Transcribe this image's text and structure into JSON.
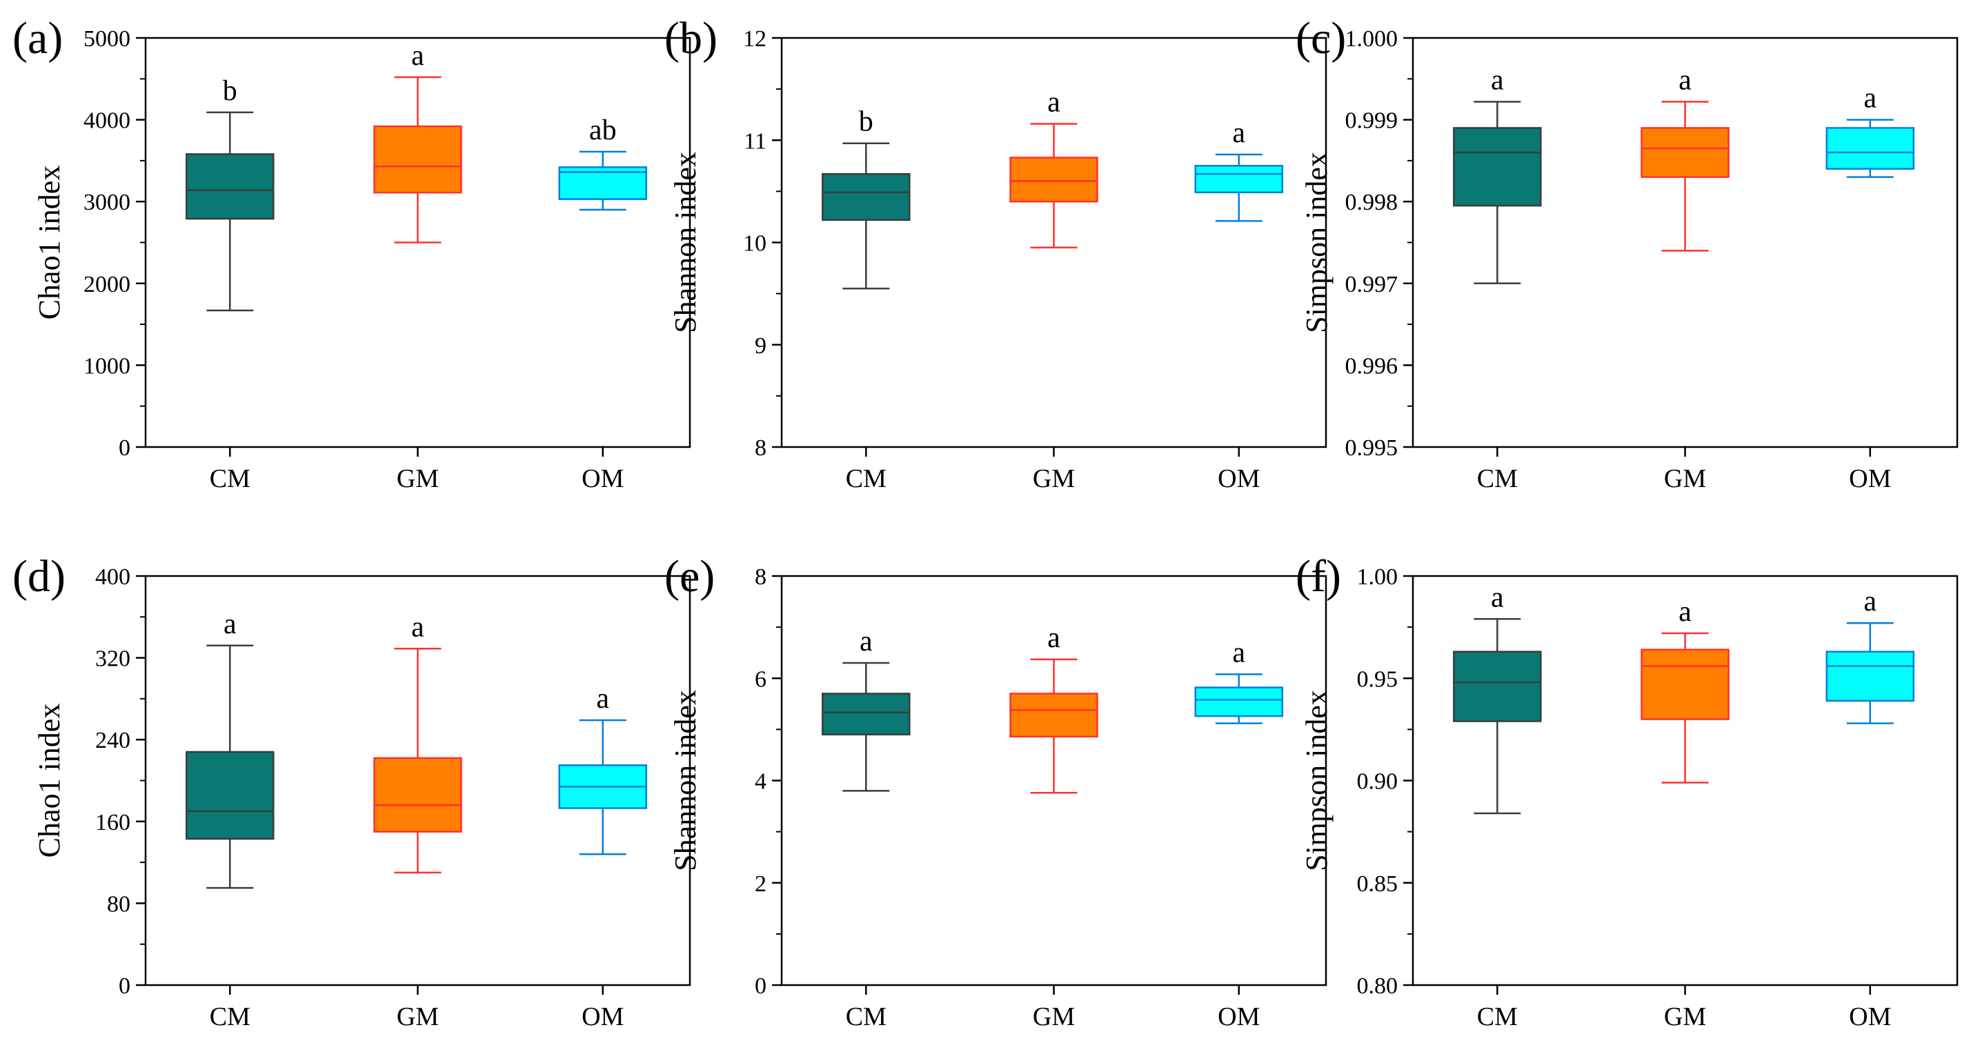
{
  "colors": {
    "CM": {
      "fill": "#0a7873",
      "stroke": "#3c3c3c"
    },
    "GM": {
      "fill": "#ff8000",
      "stroke": "#ff3030"
    },
    "OM": {
      "fill": "#00ffff",
      "stroke": "#0080e0"
    },
    "axis": "#000000"
  },
  "chart_data": [
    {
      "panel": "(a)",
      "type": "box",
      "ylabel": "Chao1 index",
      "ylim": [
        0,
        5000
      ],
      "yticks": [
        "0",
        "1000",
        "2000",
        "3000",
        "4000",
        "5000"
      ],
      "categories": [
        "CM",
        "GM",
        "OM"
      ],
      "boxes": [
        {
          "name": "CM",
          "min": 1670,
          "q1": 2790,
          "median": 3140,
          "q3": 3580,
          "max": 4090,
          "letter": "b"
        },
        {
          "name": "GM",
          "min": 2500,
          "q1": 3110,
          "median": 3430,
          "q3": 3920,
          "max": 4520,
          "letter": "a"
        },
        {
          "name": "OM",
          "min": 2900,
          "q1": 3030,
          "median": 3360,
          "q3": 3420,
          "max": 3610,
          "letter": "ab"
        }
      ]
    },
    {
      "panel": "(b)",
      "type": "box",
      "ylabel": "Shannon index",
      "ylim": [
        8,
        12
      ],
      "yticks": [
        "8",
        "9",
        "10",
        "11",
        "12"
      ],
      "categories": [
        "CM",
        "GM",
        "OM"
      ],
      "boxes": [
        {
          "name": "CM",
          "min": 9.55,
          "q1": 10.22,
          "median": 10.49,
          "q3": 10.67,
          "max": 10.97,
          "letter": "b"
        },
        {
          "name": "GM",
          "min": 9.95,
          "q1": 10.4,
          "median": 10.6,
          "q3": 10.83,
          "max": 11.16,
          "letter": "a"
        },
        {
          "name": "OM",
          "min": 10.21,
          "q1": 10.49,
          "median": 10.67,
          "q3": 10.75,
          "max": 10.86,
          "letter": "a"
        }
      ]
    },
    {
      "panel": "(c)",
      "type": "box",
      "ylabel": "Simpson index",
      "ylim": [
        0.995,
        1.0
      ],
      "yticks": [
        "0.995",
        "0.996",
        "0.997",
        "0.998",
        "0.999",
        "1.000"
      ],
      "categories": [
        "CM",
        "GM",
        "OM"
      ],
      "boxes": [
        {
          "name": "CM",
          "min": 0.997,
          "q1": 0.99795,
          "median": 0.9986,
          "q3": 0.9989,
          "max": 0.99922,
          "letter": "a"
        },
        {
          "name": "GM",
          "min": 0.9974,
          "q1": 0.9983,
          "median": 0.99865,
          "q3": 0.9989,
          "max": 0.99922,
          "letter": "a"
        },
        {
          "name": "OM",
          "min": 0.9983,
          "q1": 0.9984,
          "median": 0.9986,
          "q3": 0.9989,
          "max": 0.999,
          "letter": "a"
        }
      ]
    },
    {
      "panel": "(d)",
      "type": "box",
      "ylabel": "Chao1 index",
      "ylim": [
        0,
        400
      ],
      "yticks": [
        "0",
        "80",
        "160",
        "240",
        "320",
        "400"
      ],
      "categories": [
        "CM",
        "GM",
        "OM"
      ],
      "boxes": [
        {
          "name": "CM",
          "min": 95,
          "q1": 143,
          "median": 170,
          "q3": 228,
          "max": 332,
          "letter": "a"
        },
        {
          "name": "GM",
          "min": 110,
          "q1": 150,
          "median": 176,
          "q3": 222,
          "max": 329,
          "letter": "a"
        },
        {
          "name": "OM",
          "min": 128,
          "q1": 173,
          "median": 194,
          "q3": 215,
          "max": 259,
          "letter": "a"
        }
      ]
    },
    {
      "panel": "(e)",
      "type": "box",
      "ylabel": "Shannon index",
      "ylim": [
        0,
        8
      ],
      "yticks": [
        "0",
        "2",
        "4",
        "6",
        "8"
      ],
      "categories": [
        "CM",
        "GM",
        "OM"
      ],
      "boxes": [
        {
          "name": "CM",
          "min": 3.8,
          "q1": 4.9,
          "median": 5.33,
          "q3": 5.7,
          "max": 6.3,
          "letter": "a"
        },
        {
          "name": "GM",
          "min": 3.76,
          "q1": 4.86,
          "median": 5.38,
          "q3": 5.7,
          "max": 6.37,
          "letter": "a"
        },
        {
          "name": "OM",
          "min": 5.12,
          "q1": 5.26,
          "median": 5.58,
          "q3": 5.82,
          "max": 6.08,
          "letter": "a"
        }
      ]
    },
    {
      "panel": "(f)",
      "type": "box",
      "ylabel": "Simpson index",
      "ylim": [
        0.8,
        1.0
      ],
      "yticks": [
        "0.80",
        "0.85",
        "0.90",
        "0.95",
        "1.00"
      ],
      "categories": [
        "CM",
        "GM",
        "OM"
      ],
      "boxes": [
        {
          "name": "CM",
          "min": 0.884,
          "q1": 0.929,
          "median": 0.948,
          "q3": 0.963,
          "max": 0.979,
          "letter": "a"
        },
        {
          "name": "GM",
          "min": 0.899,
          "q1": 0.93,
          "median": 0.956,
          "q3": 0.964,
          "max": 0.972,
          "letter": "a"
        },
        {
          "name": "OM",
          "min": 0.928,
          "q1": 0.939,
          "median": 0.956,
          "q3": 0.963,
          "max": 0.977,
          "letter": "a"
        }
      ]
    }
  ]
}
